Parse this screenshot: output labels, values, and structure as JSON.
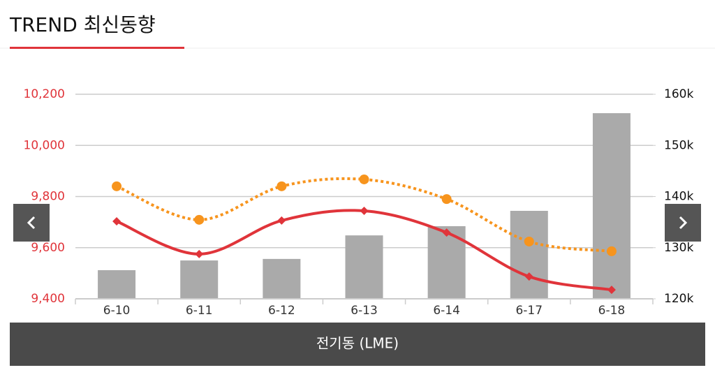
{
  "header": {
    "title": "TREND 최신동향"
  },
  "chart_data": {
    "type": "combo",
    "title": "전기동 (LME)",
    "categories": [
      "6-10",
      "6-11",
      "6-12",
      "6-13",
      "6-14",
      "6-17",
      "6-18"
    ],
    "ylim": [
      9400,
      10200
    ],
    "yticks": [
      {
        "value": 9400,
        "label": "9,400"
      },
      {
        "value": 9600,
        "label": "9,600"
      },
      {
        "value": 9800,
        "label": "9,800"
      },
      {
        "value": 10000,
        "label": "10,000"
      },
      {
        "value": 10200,
        "label": "10,200"
      }
    ],
    "y2lim": [
      120000,
      160000
    ],
    "y2ticks": [
      {
        "value": 120000,
        "label": "120k"
      },
      {
        "value": 130000,
        "label": "130k"
      },
      {
        "value": 140000,
        "label": "140k"
      },
      {
        "value": 150000,
        "label": "150k"
      },
      {
        "value": 160000,
        "label": "160k"
      }
    ],
    "grid": true,
    "series": [
      {
        "type": "bar",
        "axis": "y2",
        "color": "#aaaaaa",
        "values": [
          125600,
          127500,
          127800,
          132400,
          134200,
          137200,
          156300
        ]
      },
      {
        "type": "line",
        "color": "#e0343a",
        "marker": "diamond",
        "line_style": "solid",
        "values": [
          9703,
          9575,
          9706,
          9744,
          9659,
          9487,
          9435
        ]
      },
      {
        "type": "line",
        "color": "#f7941d",
        "marker": "circle",
        "line_style": "dotted",
        "values": [
          9840,
          9709,
          9840,
          9867,
          9790,
          9624,
          9586
        ]
      }
    ]
  }
}
